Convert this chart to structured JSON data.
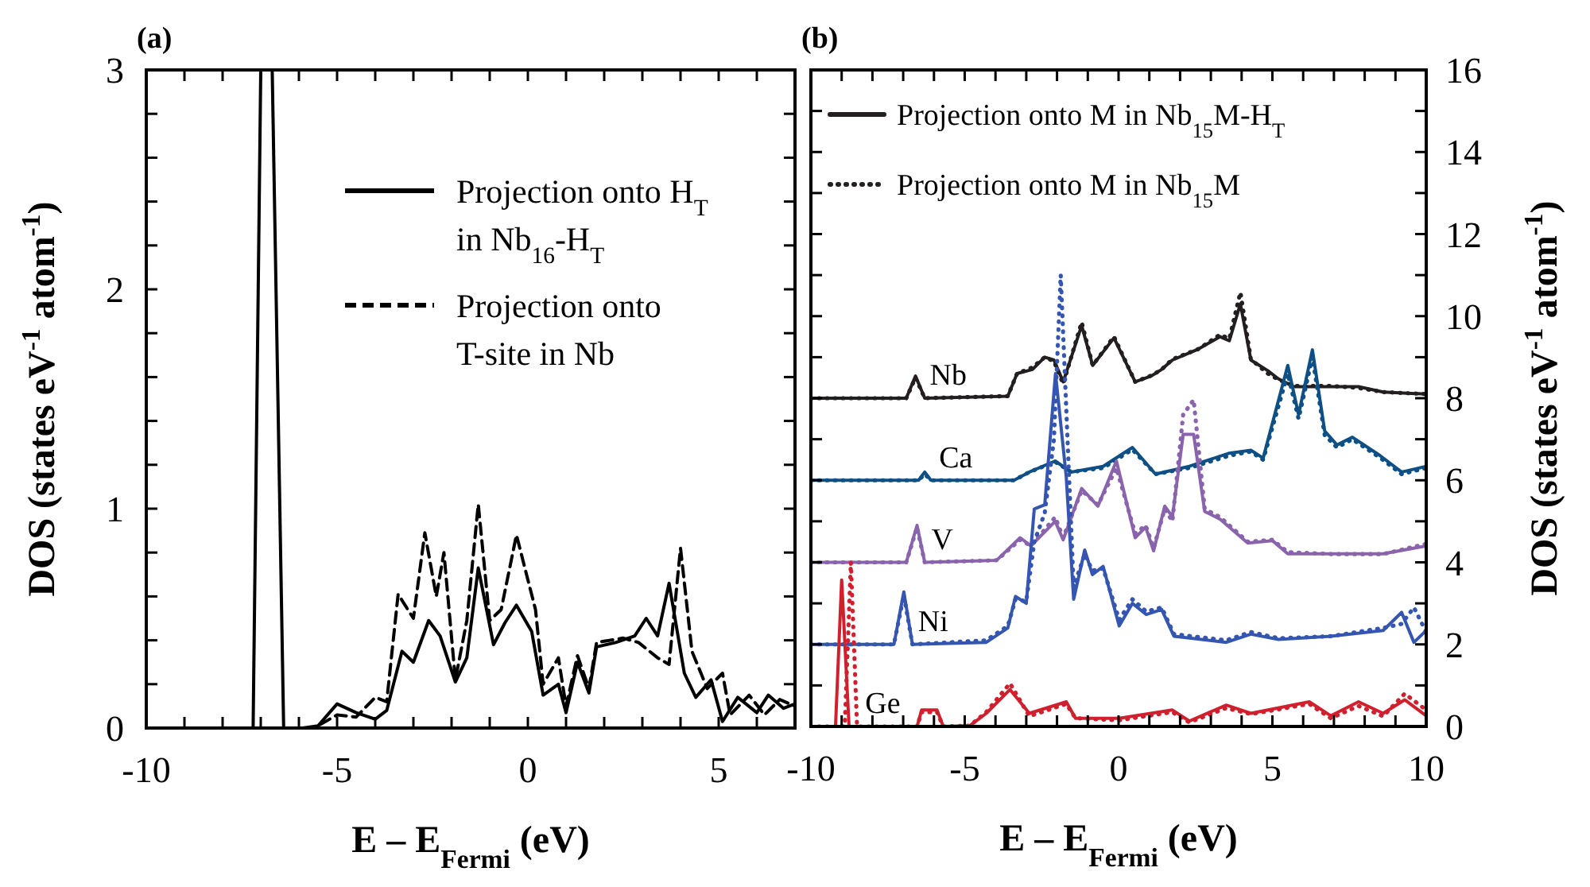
{
  "chart_data": [
    {
      "type": "line",
      "title": "(a)",
      "xlabel": "E – E$_{Fermi}$ (eV)",
      "ylabel": "DOS (states eV$^{-1}$ atom$^{-1}$)",
      "xlim": [
        -10,
        7
      ],
      "ylim": [
        0,
        3
      ],
      "xticks": [
        -10,
        {
          "value": -9,
          "label": null
        },
        {
          "value": -8,
          "label": null
        },
        {
          "value": -7,
          "label": null
        },
        {
          "value": -6,
          "label": null
        },
        -5,
        {
          "value": -4,
          "label": null
        },
        {
          "value": -3,
          "label": null
        },
        {
          "value": -2,
          "label": null
        },
        {
          "value": -1,
          "label": null
        },
        0,
        {
          "value": 1,
          "label": null
        },
        {
          "value": 2,
          "label": null
        },
        {
          "value": 3,
          "label": null
        },
        {
          "value": 4,
          "label": null
        },
        5,
        {
          "value": 6,
          "label": null
        },
        {
          "value": 7,
          "label": null
        }
      ],
      "yticks": [
        0,
        {
          "value": 0.2,
          "label": null
        },
        {
          "value": 0.4,
          "label": null
        },
        {
          "value": 0.6,
          "label": null
        },
        {
          "value": 0.8,
          "label": null
        },
        1,
        {
          "value": 1.2,
          "label": null
        },
        {
          "value": 1.4,
          "label": null
        },
        {
          "value": 1.6,
          "label": null
        },
        {
          "value": 1.8,
          "label": null
        },
        2,
        {
          "value": 2.2,
          "label": null
        },
        {
          "value": 2.4,
          "label": null
        },
        {
          "value": 2.6,
          "label": null
        },
        {
          "value": 2.8,
          "label": null
        },
        3
      ],
      "legend": "top right",
      "series": [
        {
          "name": "Projection onto H$_{T}$ in Nb$_{16}$-H$_{T}$",
          "color": "#000000",
          "line_style": "solid",
          "x": [
            -10,
            -7.2,
            -7.0,
            -6.7,
            -6.4,
            -5.9,
            -5.5,
            -5.0,
            -4.5,
            -4.0,
            -3.7,
            -3.3,
            -3.0,
            -2.6,
            -2.3,
            -1.9,
            -1.6,
            -1.3,
            -0.9,
            -0.6,
            -0.3,
            0.1,
            0.4,
            0.8,
            1.0,
            1.3,
            1.6,
            1.8,
            2.3,
            2.8,
            3.1,
            3.4,
            3.7,
            4.1,
            4.4,
            4.8,
            5.1,
            5.5,
            6.0,
            6.3,
            6.7,
            7.0
          ],
          "values": [
            0,
            0,
            3,
            3,
            0,
            0,
            0.01,
            0.11,
            0.07,
            0.04,
            0.08,
            0.35,
            0.3,
            0.49,
            0.42,
            0.21,
            0.32,
            0.73,
            0.38,
            0.48,
            0.56,
            0.44,
            0.15,
            0.2,
            0.07,
            0.3,
            0.16,
            0.37,
            0.39,
            0.42,
            0.5,
            0.42,
            0.66,
            0.25,
            0.14,
            0.22,
            0.03,
            0.14,
            0.07,
            0.15,
            0.09,
            0.11
          ]
        },
        {
          "name": "Projection onto T-site in Nb",
          "color": "#000000",
          "line_style": "dashed",
          "x": [
            -10,
            -5.6,
            -5.0,
            -4.5,
            -4.0,
            -3.7,
            -3.4,
            -3.0,
            -2.7,
            -2.4,
            -2.2,
            -1.9,
            -1.6,
            -1.3,
            -1.0,
            -0.7,
            -0.3,
            0.2,
            0.4,
            0.8,
            1.0,
            1.3,
            1.6,
            1.8,
            2.5,
            2.9,
            3.4,
            3.7,
            4.0,
            4.3,
            4.7,
            5.1,
            5.3,
            5.8,
            6.2,
            6.6,
            7.0
          ],
          "values": [
            0,
            0,
            0.06,
            0.05,
            0.14,
            0.12,
            0.61,
            0.5,
            0.89,
            0.6,
            0.8,
            0.22,
            0.49,
            1.02,
            0.49,
            0.54,
            0.88,
            0.54,
            0.2,
            0.32,
            0.1,
            0.33,
            0.18,
            0.39,
            0.41,
            0.39,
            0.32,
            0.29,
            0.82,
            0.35,
            0.18,
            0.25,
            0.06,
            0.15,
            0.06,
            0.13,
            0.1
          ]
        }
      ]
    },
    {
      "type": "line",
      "title": "(b)",
      "xlabel": "E – E$_{Fermi}$ (eV)",
      "y2label": "DOS (states eV$^{-1}$ atom$^{-1}$)",
      "xlim": [
        -10,
        10
      ],
      "y2lim": [
        0,
        16
      ],
      "xticks": [
        -10,
        {
          "value": -9,
          "label": null
        },
        {
          "value": -8,
          "label": null
        },
        {
          "value": -7,
          "label": null
        },
        {
          "value": -6,
          "label": null
        },
        -5,
        {
          "value": -4,
          "label": null
        },
        {
          "value": -3,
          "label": null
        },
        {
          "value": -2,
          "label": null
        },
        {
          "value": -1,
          "label": null
        },
        0,
        {
          "value": 1,
          "label": null
        },
        {
          "value": 2,
          "label": null
        },
        {
          "value": 3,
          "label": null
        },
        {
          "value": 4,
          "label": null
        },
        5,
        {
          "value": 6,
          "label": null
        },
        {
          "value": 7,
          "label": null
        },
        {
          "value": 8,
          "label": null
        },
        {
          "value": 9,
          "label": null
        },
        10
      ],
      "y2ticks": [
        0,
        {
          "value": 1,
          "label": null
        },
        2,
        {
          "value": 3,
          "label": null
        },
        4,
        {
          "value": 5,
          "label": null
        },
        6,
        {
          "value": 7,
          "label": null
        },
        8,
        {
          "value": 9,
          "label": null
        },
        10,
        {
          "value": 11,
          "label": null
        },
        12,
        {
          "value": 13,
          "label": null
        },
        14,
        {
          "value": 15,
          "label": null
        },
        16
      ],
      "legend": "top left",
      "annotations": [
        "Nb",
        "Ca",
        "V",
        "Ni",
        "Ge"
      ],
      "series": [
        {
          "name": "Projection onto M in Nb$_{15}$M-H$_{T}$",
          "color": "#231f20",
          "axis": "y2",
          "line_style": "solid",
          "x": [
            -10,
            -6.9,
            -6.6,
            -6.3,
            -3.6,
            -3.3,
            -2.8,
            -2.4,
            -2.1,
            -1.8,
            -1.2,
            -0.84,
            -0.15,
            0.54,
            1.06,
            1.4,
            1.75,
            2.6,
            3.3,
            3.6,
            3.96,
            4.3,
            4.85,
            5.2,
            5.7,
            6.9,
            7.8,
            8.6,
            10
          ],
          "values": [
            8,
            8,
            8.54,
            8,
            8.05,
            8.6,
            8.7,
            9,
            8.93,
            8.4,
            9.77,
            8.8,
            9.47,
            8.4,
            8.54,
            8.7,
            8.93,
            9.2,
            9.5,
            9.4,
            10.3,
            8.93,
            8.67,
            8.47,
            8.28,
            8.28,
            8.28,
            8.15,
            8.1
          ]
        },
        {
          "name": "Projection onto M in Nb$_{15}$M",
          "color": "#231f20",
          "axis": "y2",
          "line_style": "dotted",
          "x": [
            -10,
            -6.9,
            -6.6,
            -6.3,
            -3.6,
            -3.3,
            -2.8,
            -2.4,
            -2.1,
            -1.8,
            -1.2,
            -0.84,
            -0.15,
            0.54,
            1.06,
            1.4,
            1.75,
            2.6,
            3.3,
            3.6,
            3.96,
            4.3,
            4.85,
            5.2,
            5.7,
            6.9,
            7.8,
            8.6,
            10
          ],
          "values": [
            8,
            8,
            8.5,
            8,
            8.05,
            8.6,
            8.75,
            9,
            8.9,
            8.35,
            9.85,
            8.8,
            9.5,
            8.4,
            8.55,
            8.7,
            8.95,
            9.2,
            9.55,
            9.45,
            10.58,
            8.95,
            8.6,
            8.45,
            8.3,
            8.3,
            8.25,
            8.15,
            8.1
          ]
        },
        {
          "color": "#0e4f85",
          "axis": "y2",
          "line_style": "solid",
          "x": [
            -10,
            -6.5,
            -6.3,
            -6.1,
            -3.4,
            -2.9,
            -2.06,
            -1.54,
            -0.5,
            0.45,
            1.2,
            2.3,
            3.6,
            4.3,
            4.7,
            5.5,
            5.85,
            6.3,
            6.7,
            7.1,
            7.6,
            8.5,
            9.2,
            10
          ],
          "values": [
            6,
            6,
            6.2,
            6,
            6,
            6.2,
            6.47,
            6.2,
            6.34,
            6.8,
            6.15,
            6.34,
            6.66,
            6.73,
            6.54,
            8.8,
            7.6,
            9.18,
            7.2,
            6.86,
            7.05,
            6.6,
            6.2,
            6.34
          ]
        },
        {
          "color": "#0e4f85",
          "axis": "y2",
          "line_style": "dotted",
          "x": [
            -10,
            -6.5,
            -6.3,
            -6.1,
            -3.4,
            -2.9,
            -2.06,
            -1.54,
            -0.5,
            0.45,
            1.2,
            2.3,
            3.6,
            4.3,
            4.7,
            5.5,
            5.85,
            6.3,
            6.7,
            7.1,
            7.6,
            8.5,
            9.2,
            10
          ],
          "values": [
            6,
            6,
            6.15,
            6,
            6,
            6.2,
            6.45,
            6.2,
            6.3,
            6.75,
            6.15,
            6.3,
            6.6,
            6.7,
            6.5,
            8.6,
            7.5,
            9,
            7.1,
            6.8,
            7,
            6.55,
            6.15,
            6.3
          ]
        },
        {
          "color": "#8a63ad",
          "axis": "y2",
          "line_style": "solid",
          "x": [
            -10,
            -6.9,
            -6.55,
            -6.3,
            -3.96,
            -3.2,
            -2.85,
            -2.06,
            -1.8,
            -1.2,
            -0.67,
            -0.07,
            0.54,
            0.88,
            1.14,
            1.5,
            1.75,
            2.1,
            2.44,
            2.8,
            3.3,
            4.2,
            5,
            5.5,
            6.9,
            8.6,
            10
          ],
          "values": [
            4,
            4,
            4.9,
            4,
            4.05,
            4.6,
            4.4,
            5,
            4.55,
            5.8,
            5.37,
            6.47,
            4.6,
            4.86,
            4.28,
            5.37,
            5.11,
            7.12,
            7.12,
            5.24,
            5.05,
            4.47,
            4.53,
            4.21,
            4.21,
            4.21,
            4.4
          ]
        },
        {
          "color": "#8a63ad",
          "axis": "y2",
          "line_style": "dotted",
          "x": [
            -10,
            -6.9,
            -6.55,
            -6.3,
            -3.96,
            -3.2,
            -2.85,
            -2.06,
            -1.8,
            -1.2,
            -0.67,
            -0.07,
            0.54,
            0.88,
            1.14,
            1.5,
            1.75,
            2.1,
            2.44,
            2.8,
            3.3,
            4.2,
            5,
            5.5,
            6.9,
            8.6,
            10
          ],
          "values": [
            4,
            4,
            4.85,
            4,
            4.05,
            4.55,
            4.4,
            5.1,
            4.6,
            5.75,
            5.4,
            6.3,
            4.7,
            4.9,
            4.35,
            5.3,
            5,
            7.6,
            7.96,
            5.3,
            5.1,
            4.5,
            4.55,
            4.25,
            4.2,
            4.2,
            4.45
          ]
        },
        {
          "color": "#3556b0",
          "axis": "y2",
          "line_style": "solid",
          "x": [
            -10,
            -7.3,
            -6.98,
            -6.7,
            -4.3,
            -3.6,
            -3.35,
            -3,
            -2.74,
            -2.4,
            -2.05,
            -1.7,
            -1.46,
            -1.1,
            -0.85,
            -0.5,
            0.02,
            0.45,
            0.9,
            1.4,
            1.8,
            3.5,
            4.3,
            5.2,
            6.9,
            8.6,
            9.2,
            9.6,
            10
          ],
          "values": [
            2,
            2,
            3.28,
            2,
            2.05,
            2.4,
            3.17,
            3,
            5.3,
            5.4,
            8.6,
            6.08,
            3.1,
            4.3,
            3.7,
            3.9,
            2.45,
            3,
            2.73,
            2.85,
            2.2,
            2.05,
            2.25,
            2.12,
            2.2,
            2.34,
            2.78,
            2.05,
            2.34
          ]
        },
        {
          "color": "#3556b0",
          "axis": "y2",
          "line_style": "dotted",
          "x": [
            -10,
            -7.3,
            -6.98,
            -6.7,
            -4.3,
            -3.6,
            -3.35,
            -3,
            -2.74,
            -2.4,
            -2.1,
            -1.88,
            -1.46,
            -1.1,
            -0.85,
            -0.5,
            0.02,
            0.45,
            0.9,
            1.4,
            1.8,
            3.5,
            4.3,
            5.2,
            6.9,
            8.6,
            9.2,
            9.6,
            10
          ],
          "values": [
            2,
            2,
            3.2,
            2,
            2.1,
            2.45,
            3.1,
            3.05,
            4.5,
            5.2,
            7,
            11,
            3.4,
            4.2,
            3.8,
            3.85,
            2.6,
            3.1,
            2.8,
            2.9,
            2.25,
            2.1,
            2.3,
            2.15,
            2.2,
            2.4,
            2.5,
            2.9,
            2.3
          ]
        },
        {
          "color": "#d0202e",
          "axis": "y2",
          "line_style": "solid",
          "x": [
            -10,
            -9.2,
            -9,
            -8.76,
            -6.55,
            -6.4,
            -5.9,
            -5.7,
            -4.83,
            -4.3,
            -3.53,
            -2.9,
            -1.7,
            -1.4,
            0.02,
            1.75,
            2.3,
            3.5,
            4.3,
            6.2,
            6.9,
            7.8,
            8.6,
            9.3,
            10
          ],
          "values": [
            0,
            0,
            3.57,
            0,
            0,
            0.4,
            0.4,
            0,
            0.02,
            0.32,
            0.9,
            0.32,
            0.6,
            0.2,
            0.2,
            0.4,
            0.13,
            0.52,
            0.32,
            0.6,
            0.26,
            0.6,
            0.32,
            0.65,
            0.26
          ]
        },
        {
          "color": "#d0202e",
          "axis": "y2",
          "line_style": "dotted",
          "x": [
            -10,
            -8.9,
            -8.7,
            -8.5,
            -6.55,
            -6.4,
            -5.9,
            -5.7,
            -4.83,
            -4.3,
            -3.53,
            -2.9,
            -1.7,
            -1.4,
            0.02,
            1.75,
            2.3,
            3.5,
            4.3,
            6.2,
            6.9,
            7.8,
            8.6,
            9.3,
            10
          ],
          "values": [
            0,
            0,
            4,
            0,
            0,
            0.35,
            0.35,
            0,
            0.02,
            0.35,
            1.05,
            0.25,
            0.55,
            0.2,
            0.15,
            0.35,
            0.1,
            0.45,
            0.3,
            0.55,
            0.2,
            0.5,
            0.25,
            0.8,
            0.4
          ]
        }
      ]
    }
  ]
}
